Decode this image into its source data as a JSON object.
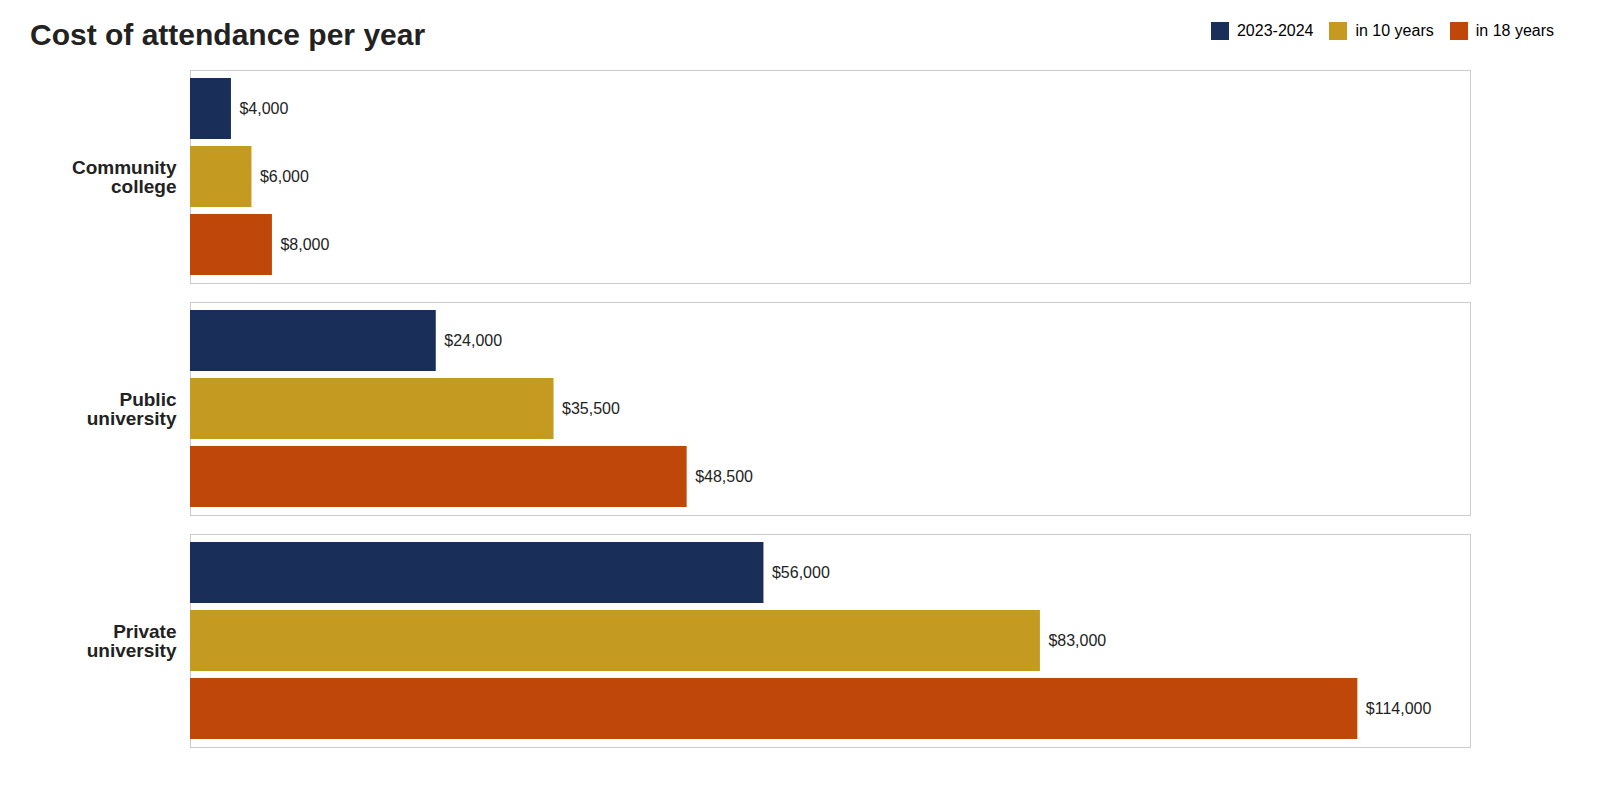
{
  "chart_data": {
    "type": "bar",
    "orientation": "horizontal",
    "title": "Cost of attendance per year",
    "categories": [
      "Community\ncollege",
      "Public\nuniversity",
      "Private\nuniversity"
    ],
    "series": [
      {
        "name": "2023-2024",
        "color": "#1a2e5a",
        "values": [
          4000,
          24000,
          56000
        ],
        "value_labels": [
          "$4,000",
          "$24,000",
          "$56,000"
        ]
      },
      {
        "name": "in 10 years",
        "color": "#c49a20",
        "values": [
          6000,
          35500,
          83000
        ],
        "value_labels": [
          "$6,000",
          "$35,500",
          "$83,000"
        ]
      },
      {
        "name": "in 18 years",
        "color": "#c0470a",
        "values": [
          8000,
          48500,
          114000
        ],
        "value_labels": [
          "$8,000",
          "$48,500",
          "$114,000"
        ]
      }
    ],
    "xlim": [
      0,
      125000
    ],
    "xticks": [],
    "tick_labels": "y",
    "data_labels": true,
    "grid": false,
    "legend": "upper right"
  }
}
